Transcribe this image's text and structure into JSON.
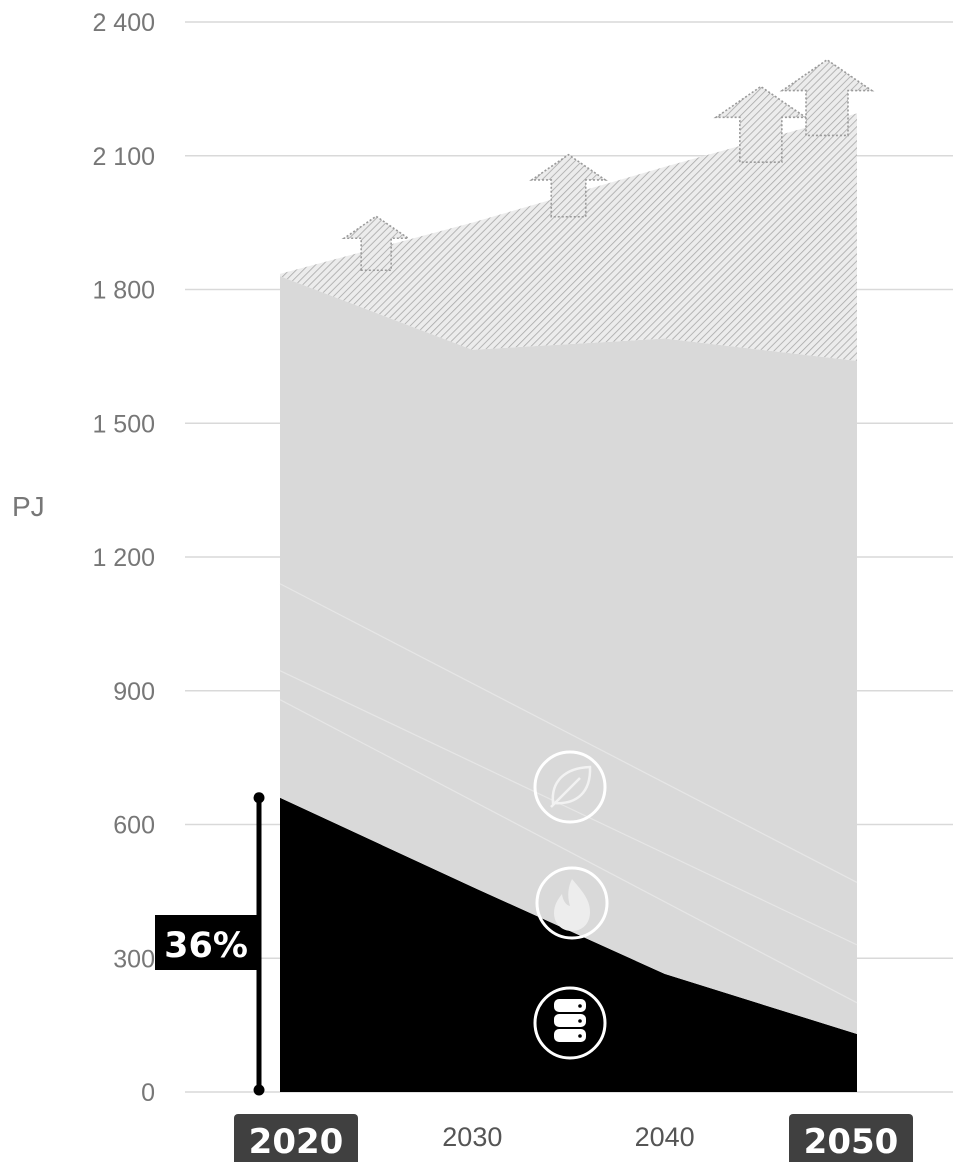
{
  "chart_data": {
    "type": "area",
    "x": [
      2020,
      2030,
      2040,
      2050
    ],
    "x_tick_labels": [
      "2020",
      "2030",
      "2040",
      "2050"
    ],
    "highlighted_x": [
      "2020",
      "2050"
    ],
    "ylabel": "PJ",
    "ylim": [
      0,
      2400
    ],
    "y_ticks": [
      0,
      300,
      600,
      900,
      1200,
      1500,
      1800,
      2100,
      2400
    ],
    "y_tick_labels": [
      "0",
      "300",
      "600",
      "900",
      "1 200",
      "1 500",
      "1 800",
      "2 100",
      "2 400"
    ],
    "grid": true,
    "series": [
      {
        "values": [
          660,
          460,
          265,
          130
        ],
        "color": "#000000",
        "icon": "database-icon"
      },
      {
        "values": [
          1170,
          1205,
          1425,
          1510
        ],
        "color": "#d9d9d9",
        "icons": [
          "flame-icon",
          "leaf-icon"
        ]
      },
      {
        "values": [
          5,
          285,
          385,
          555
        ],
        "color": "#cfcfcf",
        "pattern": "hatched",
        "upside_arrows": true
      }
    ],
    "share_annotation": {
      "x": 2020,
      "range": [
        0,
        660
      ],
      "label": "36%"
    }
  }
}
